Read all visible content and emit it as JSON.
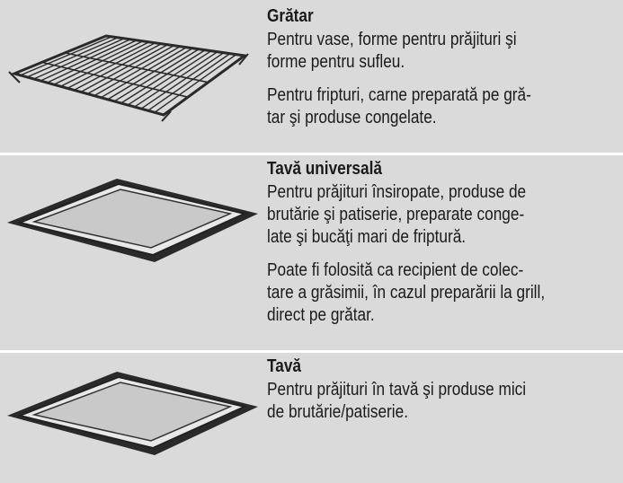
{
  "rows": [
    {
      "title": "Grătar",
      "paragraphs": [
        [
          "Pentru vase, forme pentru prăjituri şi",
          "forme pentru sufleu."
        ],
        [
          "Pentru fripturi, carne preparată pe gră-",
          "tar şi produse congelate."
        ]
      ]
    },
    {
      "title": "Tavă universală",
      "paragraphs": [
        [
          "Pentru prăjituri însiropate, produse de",
          "brutărie şi patiserie, preparate conge-",
          "late şi bucăţi mari de friptură."
        ],
        [
          "Poate fi folosită ca recipient de colec-",
          "tare a grăsimii, în cazul preparării la grill,",
          "direct pe grătar."
        ]
      ]
    },
    {
      "title": "Tavă",
      "paragraphs": [
        [
          "Pentru prăjituri în tavă şi produse mici",
          "de brutărie/patiserie."
        ]
      ]
    }
  ]
}
